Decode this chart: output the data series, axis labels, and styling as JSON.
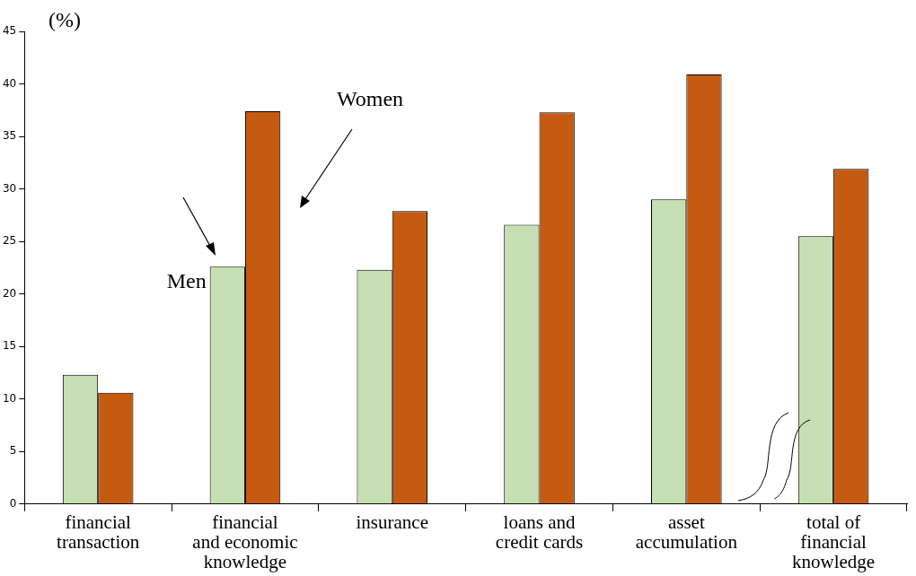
{
  "chart_data": {
    "type": "bar",
    "ylabel": "(%)",
    "categories": [
      "financial transaction",
      "financial and economic knowledge",
      "insurance",
      "loans and credit cards",
      "asset accumulation",
      "total of financial knowledge"
    ],
    "series": [
      {
        "name": "Men",
        "color": "#c6e0b4",
        "values": [
          12.3,
          22.6,
          22.3,
          26.6,
          29.0,
          25.5
        ]
      },
      {
        "name": "Women",
        "color": "#c55a11",
        "values": [
          10.6,
          37.4,
          27.9,
          37.3,
          40.9,
          31.9
        ]
      }
    ],
    "ylim": [
      0,
      45
    ],
    "yticks": [
      0,
      5,
      10,
      15,
      20,
      25,
      30,
      35,
      40,
      45
    ],
    "grid": false,
    "legend": false
  }
}
